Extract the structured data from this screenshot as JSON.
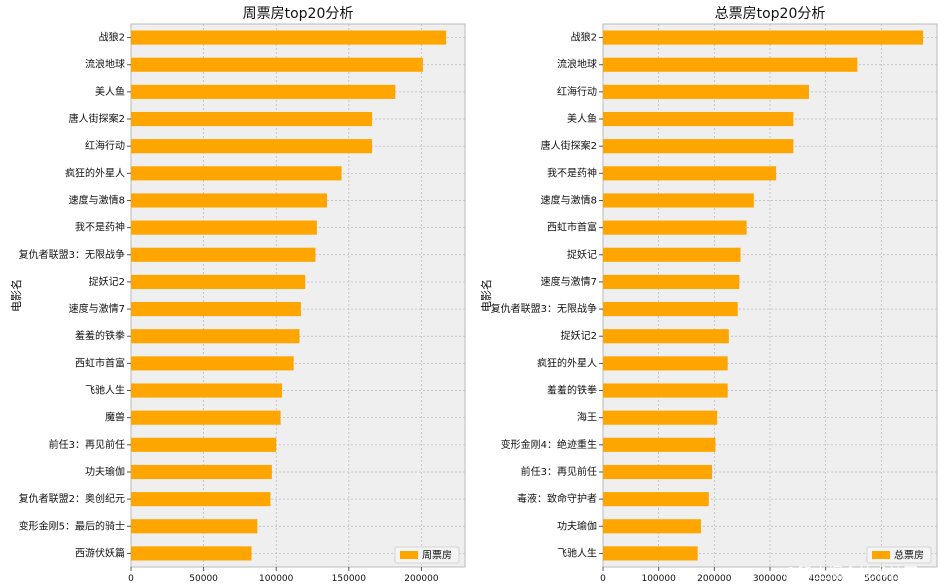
{
  "chart_data": [
    {
      "type": "bar",
      "orientation": "horizontal",
      "title": "周票房top20分析",
      "ylabel": "电影名",
      "xlabel": "",
      "xlim": [
        0,
        230000
      ],
      "xticks": [
        0,
        50000,
        100000,
        150000,
        200000
      ],
      "grid": true,
      "legend": "bottom-right",
      "color": "#FFA500",
      "series": [
        {
          "name": "周票房",
          "values": [
            217000,
            201000,
            182000,
            166000,
            166000,
            145000,
            135000,
            128000,
            127000,
            120000,
            117000,
            116000,
            112000,
            104000,
            103000,
            100000,
            97000,
            96000,
            87000,
            83000
          ]
        }
      ],
      "categories": [
        "战狼2",
        "流浪地球",
        "美人鱼",
        "唐人街探案2",
        "红海行动",
        "疯狂的外星人",
        "速度与激情8",
        "我不是药神",
        "复仇者联盟3：无限战争",
        "捉妖记2",
        "速度与激情7",
        "羞羞的铁拳",
        "西虹市首富",
        "飞驰人生",
        "魔兽",
        "前任3：再见前任",
        "功夫瑜伽",
        "复仇者联盟2：奥创纪元",
        "变形金刚5：最后的骑士",
        "西游伏妖篇"
      ]
    },
    {
      "type": "bar",
      "orientation": "horizontal",
      "title": "总票房top20分析",
      "ylabel": "电影名",
      "xlabel": "",
      "xlim": [
        0,
        600000
      ],
      "xticks": [
        0,
        100000,
        200000,
        300000,
        400000,
        500000
      ],
      "grid": true,
      "legend": "bottom-right",
      "color": "#FFA500",
      "series": [
        {
          "name": "总票房",
          "values": [
            575000,
            457000,
            370000,
            342000,
            342000,
            311000,
            271000,
            258000,
            247000,
            245000,
            242000,
            226000,
            224000,
            224000,
            205000,
            202000,
            196000,
            190000,
            176000,
            170000
          ]
        }
      ],
      "categories": [
        "战狼2",
        "流浪地球",
        "红海行动",
        "美人鱼",
        "唐人街探案2",
        "我不是药神",
        "速度与激情8",
        "西虹市首富",
        "捉妖记",
        "速度与激情7",
        "复仇者联盟3：无限战争",
        "捉妖记2",
        "疯狂的外星人",
        "羞羞的铁拳",
        "海王",
        "变形金刚4：绝迹重生",
        "前任3：再见前任",
        "毒液：致命守护者",
        "功夫瑜伽",
        "飞驰人生"
      ]
    }
  ],
  "watermark": "@稀土掘金技术社区"
}
